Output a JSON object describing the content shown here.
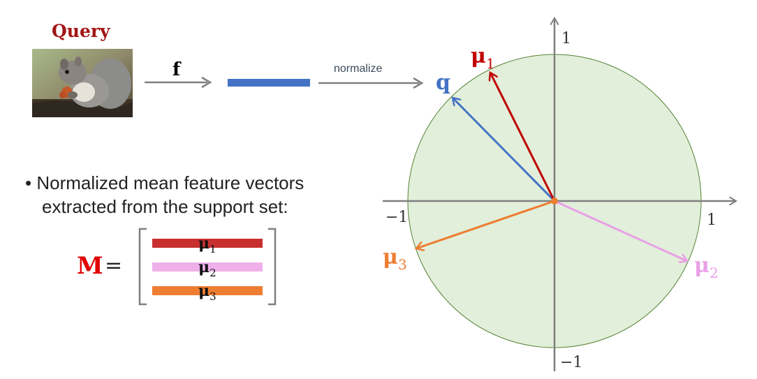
{
  "query": {
    "title": "Query"
  },
  "arrow_f_label": "f",
  "normalize_label": "normalize",
  "bullet": {
    "line1": "Normalized mean feature vectors",
    "line2": "extracted from the support set:"
  },
  "matrix": {
    "name": "M",
    "equals": "=",
    "rows": [
      {
        "base": "μ",
        "sub": "1",
        "color": "#c8302f"
      },
      {
        "base": "μ",
        "sub": "2",
        "color": "#efb0ea"
      },
      {
        "base": "μ",
        "sub": "3",
        "color": "#ed7d31"
      }
    ]
  },
  "circle": {
    "fill": "#e2efda",
    "axis_ticks": {
      "y_top": "1",
      "y_bottom": "−1",
      "x_left": "−1",
      "x_right": "1"
    },
    "vectors": [
      {
        "label_base": "q",
        "label_sub": "",
        "color": "#4472c4"
      },
      {
        "label_base": "μ",
        "label_sub": "1",
        "color": "#c00000"
      },
      {
        "label_base": "μ",
        "label_sub": "2",
        "color": "#e9a0e6"
      },
      {
        "label_base": "μ",
        "label_sub": "3",
        "color": "#ed7d31"
      }
    ]
  },
  "colors": {
    "query_title": "#a31515",
    "feature_bar": "#4472c4",
    "arrow_gray": "#808080",
    "axis_gray": "#7f7f7f",
    "origin_dot": "#ed7d31"
  }
}
